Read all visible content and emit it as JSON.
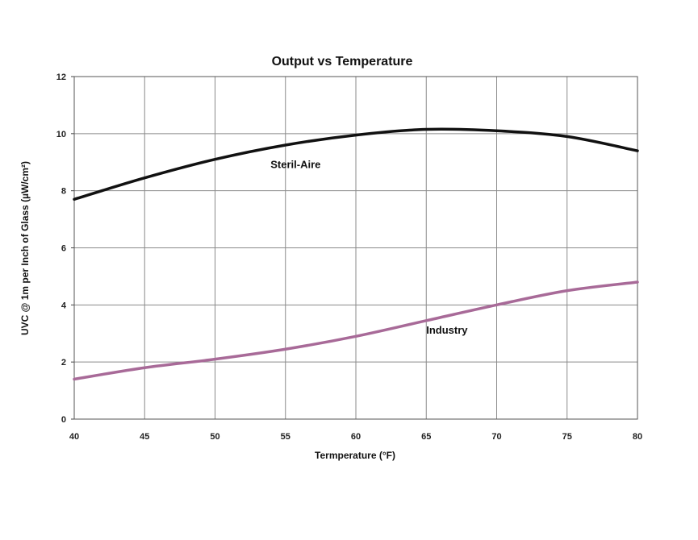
{
  "chart_data": {
    "type": "line",
    "title": "Output vs Temperature",
    "xlabel": "Termperature (°F)",
    "ylabel": "UVC @ 1m per Inch of Glass (µW/cm²)",
    "xlim": [
      40,
      80
    ],
    "ylim": [
      0,
      12
    ],
    "xticks": [
      "40",
      "45",
      "50",
      "55",
      "60",
      "65",
      "70",
      "75",
      "80"
    ],
    "yticks": [
      "0",
      "2",
      "4",
      "6",
      "8",
      "10",
      "12"
    ],
    "grid": true,
    "legend": "none",
    "x": [
      40,
      45,
      50,
      55,
      60,
      65,
      70,
      75,
      80
    ],
    "series": [
      {
        "name": "Steril-Aire",
        "color": "#111111",
        "values": [
          7.7,
          8.45,
          9.1,
          9.6,
          9.95,
          10.15,
          10.1,
          9.9,
          9.4
        ]
      },
      {
        "name": "Industry",
        "color": "#a86a98",
        "values": [
          1.4,
          1.8,
          2.1,
          2.45,
          2.9,
          3.45,
          4.0,
          4.5,
          4.8
        ]
      }
    ]
  }
}
